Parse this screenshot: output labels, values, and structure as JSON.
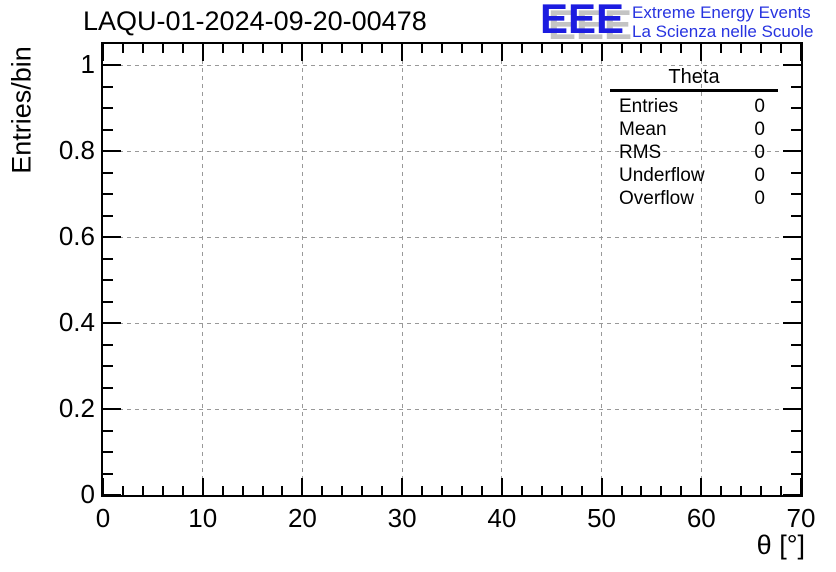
{
  "figure": {
    "title": "LAQU-01-2024-09-20-00478",
    "logo": {
      "acronym": "EEE",
      "tagline_line1": "Extreme Energy Events",
      "tagline_line2": "La Scienza nelle Scuole",
      "acronym_color": "#1c1ce0",
      "text_color": "#2733e0",
      "shadow_color": "#c4c4c4"
    },
    "stats": {
      "title": "Theta",
      "rows": [
        {
          "label": "Entries",
          "value": "0"
        },
        {
          "label": "Mean",
          "value": "0"
        },
        {
          "label": "RMS",
          "value": "0"
        },
        {
          "label": "Underflow",
          "value": "0"
        },
        {
          "label": "Overflow",
          "value": "0"
        }
      ]
    }
  },
  "chart_data": {
    "type": "bar",
    "title": "LAQU-01-2024-09-20-00478",
    "xlabel": "θ [°]",
    "ylabel": "Entries/bin",
    "xlim": [
      0,
      70
    ],
    "ylim": [
      0,
      1.05
    ],
    "x_major_ticks": [
      0,
      10,
      20,
      30,
      40,
      50,
      60,
      70
    ],
    "x_tick_labels": [
      "0",
      "10",
      "20",
      "30",
      "40",
      "50",
      "60",
      "70"
    ],
    "x_minor_step": 2,
    "y_major_ticks": [
      0,
      0.2,
      0.4,
      0.6,
      0.8,
      1
    ],
    "y_tick_labels": [
      "0",
      "0.2",
      "0.4",
      "0.6",
      "0.8",
      "1"
    ],
    "y_minor_step": 0.05,
    "grid": true,
    "grid_color": "#999999",
    "axis_color": "#000000",
    "series": [
      {
        "name": "Theta",
        "values": []
      }
    ],
    "entries": 0,
    "mean": 0,
    "rms": 0,
    "underflow": 0,
    "overflow": 0
  }
}
